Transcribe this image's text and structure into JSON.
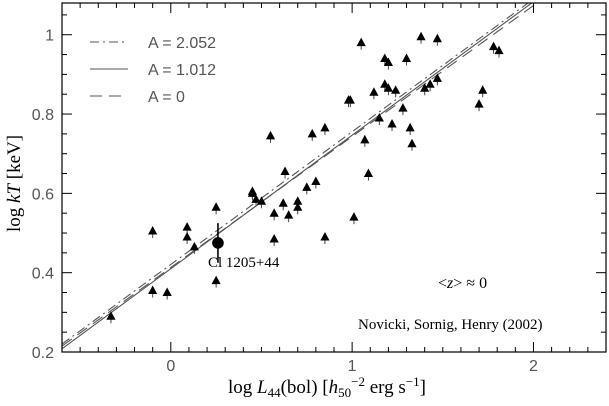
{
  "chart_data": {
    "type": "scatter",
    "xlabel": "log L44(bol) [h50^-2 erg s^-1]",
    "ylabel": "log kT [keV]",
    "xlim": [
      -0.6,
      2.4
    ],
    "ylim": [
      0.2,
      1.08
    ],
    "x_ticks": [
      0,
      1,
      2
    ],
    "x_tick_labels": [
      "0",
      "1",
      "2"
    ],
    "y_ticks": [
      0.2,
      0.4,
      0.6,
      0.8,
      1.0
    ],
    "y_tick_labels": [
      "0.2",
      "0.4",
      "0.6",
      "0.8",
      "1"
    ],
    "grid": false,
    "legend_position": "top-left",
    "fit_lines": [
      {
        "name": "A = 2.052",
        "style": "dash-dot",
        "x": [
          -0.6,
          2.0
        ],
        "y": [
          0.22,
          1.09
        ]
      },
      {
        "name": "A = 1.012",
        "style": "solid",
        "x": [
          -0.6,
          2.02
        ],
        "y": [
          0.208,
          1.09
        ]
      },
      {
        "name": "A = 0",
        "style": "dashed",
        "x": [
          -0.6,
          2.05
        ],
        "y": [
          0.215,
          1.09
        ]
      }
    ],
    "series": [
      {
        "marker": "triangle",
        "points": [
          [
            -0.33,
            0.29
          ],
          [
            -0.1,
            0.355
          ],
          [
            -0.1,
            0.505
          ],
          [
            -0.02,
            0.35
          ],
          [
            0.09,
            0.515
          ],
          [
            0.09,
            0.49
          ],
          [
            0.13,
            0.465
          ],
          [
            0.25,
            0.38
          ],
          [
            0.25,
            0.565
          ],
          [
            0.45,
            0.605
          ],
          [
            0.45,
            0.6
          ],
          [
            0.47,
            0.585
          ],
          [
            0.5,
            0.58
          ],
          [
            0.55,
            0.745
          ],
          [
            0.57,
            0.55
          ],
          [
            0.57,
            0.485
          ],
          [
            0.62,
            0.575
          ],
          [
            0.63,
            0.655
          ],
          [
            0.65,
            0.545
          ],
          [
            0.7,
            0.58
          ],
          [
            0.7,
            0.565
          ],
          [
            0.75,
            0.615
          ],
          [
            0.78,
            0.75
          ],
          [
            0.8,
            0.63
          ],
          [
            0.85,
            0.765
          ],
          [
            0.85,
            0.49
          ],
          [
            0.98,
            0.835
          ],
          [
            0.99,
            0.835
          ],
          [
            1.01,
            0.54
          ],
          [
            1.05,
            0.98
          ],
          [
            1.07,
            0.735
          ],
          [
            1.09,
            0.65
          ],
          [
            1.12,
            0.855
          ],
          [
            1.15,
            0.79
          ],
          [
            1.18,
            0.94
          ],
          [
            1.18,
            0.875
          ],
          [
            1.2,
            0.93
          ],
          [
            1.2,
            0.865
          ],
          [
            1.22,
            0.775
          ],
          [
            1.24,
            0.86
          ],
          [
            1.28,
            0.815
          ],
          [
            1.3,
            0.94
          ],
          [
            1.32,
            0.765
          ],
          [
            1.33,
            0.725
          ],
          [
            1.38,
            0.995
          ],
          [
            1.4,
            0.865
          ],
          [
            1.43,
            0.875
          ],
          [
            1.47,
            0.99
          ],
          [
            1.47,
            0.89
          ],
          [
            1.7,
            0.825
          ],
          [
            1.72,
            0.86
          ],
          [
            1.78,
            0.97
          ],
          [
            1.81,
            0.96
          ]
        ]
      },
      {
        "name": "Cl 1205+44",
        "marker": "filled-circle",
        "points": [
          [
            0.26,
            0.475
          ]
        ],
        "yerr": 0.05
      }
    ],
    "annotations": [
      {
        "text": "Cl 1205+44",
        "x": 0.26,
        "y": 0.41
      },
      {
        "text": "<z> ≈ 0",
        "x": 1.58,
        "y": 0.37
      },
      {
        "text": "Novicki, Sornig, Henry (2002)",
        "x": 1.5,
        "y": 0.3
      }
    ]
  }
}
